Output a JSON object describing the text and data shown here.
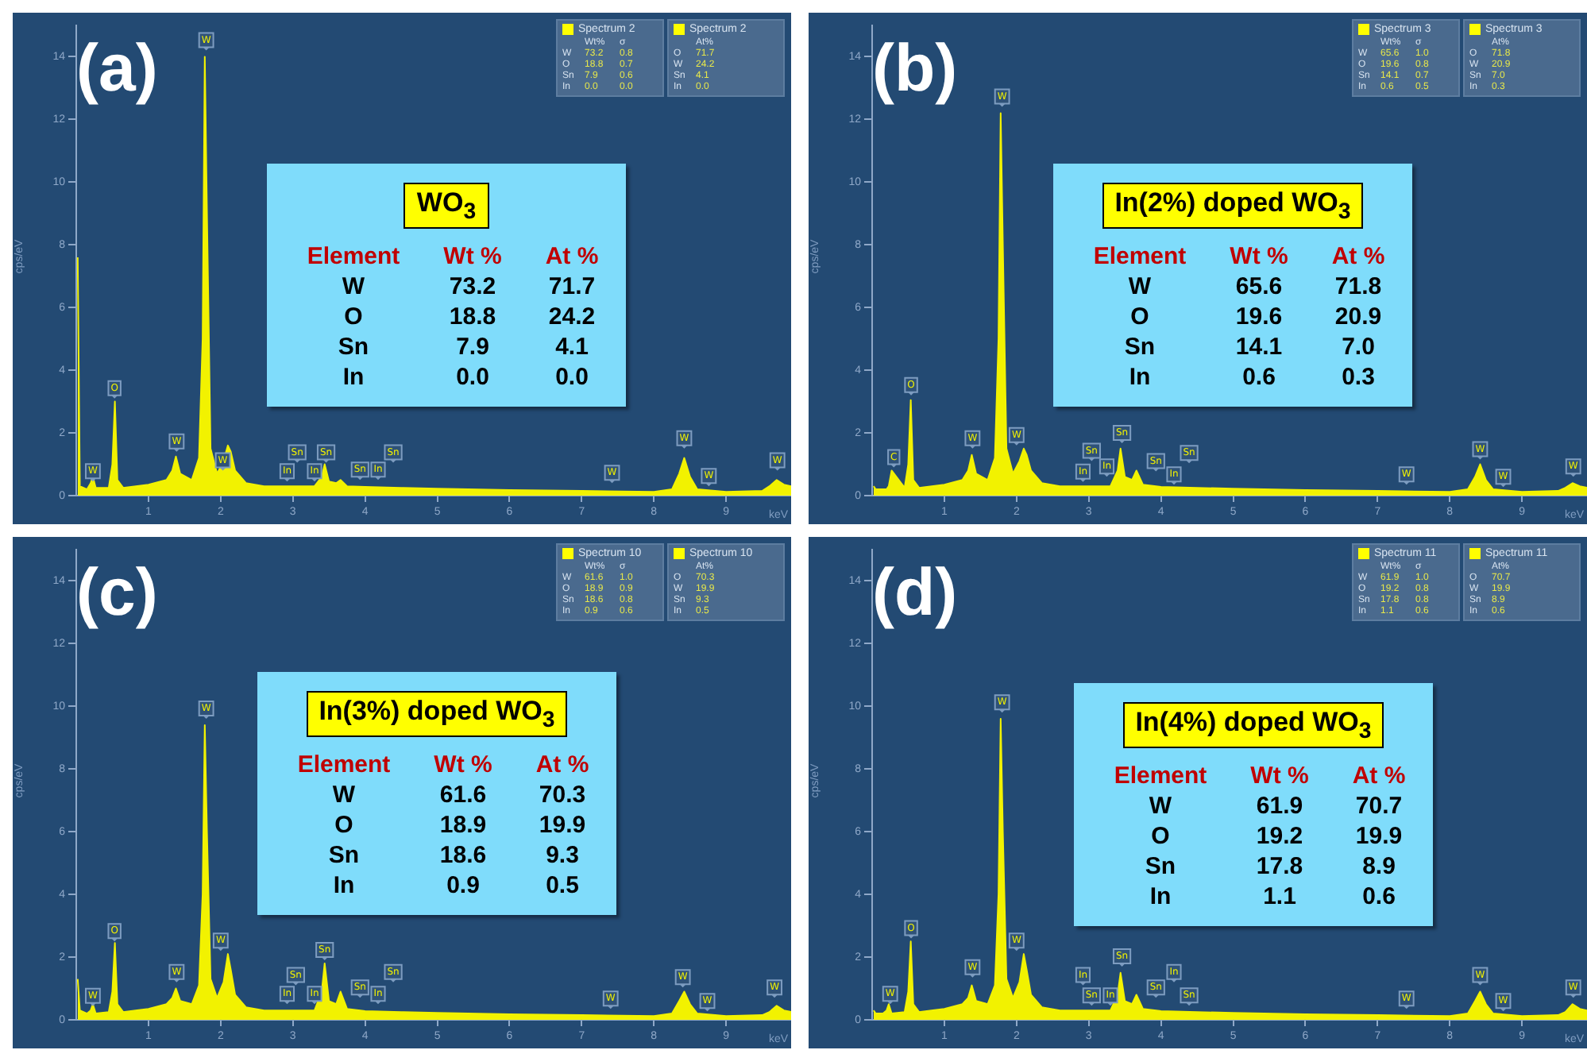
{
  "chart_data": [
    {
      "type": "area",
      "title": "(a)",
      "xlabel": "keV",
      "ylabel": "cps/eV",
      "x": [
        0.02,
        0.05,
        0.15,
        0.2,
        0.23,
        0.27,
        0.45,
        0.5,
        0.535,
        0.57,
        0.65,
        1.0,
        1.25,
        1.33,
        1.38,
        1.44,
        1.6,
        1.7,
        1.75,
        1.78,
        1.81,
        1.86,
        1.95,
        2.04,
        2.1,
        2.14,
        2.2,
        2.35,
        2.6,
        3.0,
        3.3,
        3.4,
        3.44,
        3.5,
        3.6,
        3.66,
        3.75,
        4.0,
        4.5,
        5.0,
        6.0,
        7.0,
        8.0,
        8.25,
        8.35,
        8.42,
        8.5,
        8.6,
        9.0,
        9.5,
        9.6,
        9.7,
        9.8,
        9.9
      ],
      "series": [
        {
          "color": "#f2f200",
          "values": [
            7.6,
            0.3,
            0.2,
            0.4,
            0.6,
            0.25,
            0.25,
            1.0,
            3.0,
            0.5,
            0.25,
            0.35,
            0.5,
            0.8,
            1.25,
            0.7,
            0.5,
            1.2,
            5.0,
            14.0,
            9.0,
            1.5,
            0.7,
            1.1,
            1.6,
            1.4,
            0.8,
            0.4,
            0.3,
            0.3,
            0.3,
            0.6,
            1.0,
            0.45,
            0.4,
            0.5,
            0.3,
            0.28,
            0.25,
            0.22,
            0.18,
            0.15,
            0.12,
            0.2,
            0.7,
            1.2,
            0.6,
            0.2,
            0.12,
            0.15,
            0.3,
            0.5,
            0.35,
            0.3
          ]
        }
      ],
      "xlim": [
        0,
        9.9
      ],
      "ylim": [
        0,
        15
      ],
      "xticks": [
        1,
        2,
        3,
        4,
        5,
        6,
        7,
        8,
        9
      ],
      "yticks": [
        0,
        2,
        4,
        6,
        8,
        10,
        12,
        14
      ],
      "grid": false,
      "legend": false,
      "marker": "none",
      "annotations": [
        "WO$_{3}$",
        "Element",
        "Wt %",
        "At %",
        "W",
        "73.2",
        "71.7",
        "O",
        "18.8",
        "24.2",
        "Sn",
        "7.9",
        "4.1",
        "In",
        "0.0",
        "0.0",
        "Spectrum 2",
        "Wt%",
        "σ",
        "W",
        "73.2",
        "0.8",
        "O",
        "18.8",
        "0.7",
        "Sn",
        "7.9",
        "0.6",
        "In",
        "0.0",
        "0.0",
        "Spectrum 2",
        "At%",
        "O",
        "71.7",
        "W",
        "24.2",
        "Sn",
        "4.1",
        "In",
        "0.0",
        {
          "text": "W",
          "x": 0.23,
          "y": 0.45
        },
        {
          "text": "O",
          "x": 0.53,
          "y": 3.1
        },
        {
          "text": "W",
          "x": 1.39,
          "y": 1.4
        },
        {
          "text": "W",
          "x": 1.8,
          "y": 14.2
        },
        {
          "text": "W",
          "x": 2.03,
          "y": 0.8
        },
        {
          "text": "In",
          "x": 2.92,
          "y": 0.45
        },
        {
          "text": "Sn",
          "x": 3.06,
          "y": 1.05
        },
        {
          "text": "In",
          "x": 3.3,
          "y": 0.45
        },
        {
          "text": "Sn",
          "x": 3.46,
          "y": 1.05
        },
        {
          "text": "Sn",
          "x": 3.93,
          "y": 0.5
        },
        {
          "text": "In",
          "x": 4.18,
          "y": 0.5
        },
        {
          "text": "Sn",
          "x": 4.39,
          "y": 1.05
        },
        {
          "text": "W",
          "x": 7.42,
          "y": 0.4
        },
        {
          "text": "W",
          "x": 8.42,
          "y": 1.5
        },
        {
          "text": "W",
          "x": 8.76,
          "y": 0.3
        },
        {
          "text": "W",
          "x": 9.71,
          "y": 0.8
        }
      ]
    },
    {
      "type": "area",
      "title": "(b)",
      "xlabel": "keV",
      "ylabel": "cps/eV",
      "x": [
        0.02,
        0.05,
        0.15,
        0.2,
        0.23,
        0.27,
        0.45,
        0.5,
        0.535,
        0.57,
        0.65,
        1.0,
        1.25,
        1.33,
        1.38,
        1.44,
        1.6,
        1.7,
        1.75,
        1.78,
        1.81,
        1.86,
        1.95,
        2.04,
        2.1,
        2.14,
        2.2,
        2.35,
        2.6,
        3.0,
        3.3,
        3.4,
        3.44,
        3.5,
        3.6,
        3.66,
        3.75,
        4.0,
        4.5,
        5.0,
        6.0,
        7.0,
        8.0,
        8.25,
        8.35,
        8.42,
        8.5,
        8.6,
        9.0,
        9.5,
        9.6,
        9.7,
        9.8,
        9.9
      ],
      "series": [
        {
          "color": "#f2f200",
          "values": [
            0.3,
            0.2,
            0.2,
            0.2,
            0.3,
            0.8,
            0.25,
            1.0,
            3.05,
            0.5,
            0.25,
            0.35,
            0.5,
            0.8,
            1.3,
            0.7,
            0.5,
            1.2,
            5.0,
            12.2,
            8.0,
            1.5,
            0.7,
            1.1,
            1.5,
            1.3,
            0.8,
            0.4,
            0.3,
            0.3,
            0.3,
            0.8,
            1.5,
            0.6,
            0.5,
            0.8,
            0.35,
            0.28,
            0.25,
            0.22,
            0.18,
            0.15,
            0.12,
            0.2,
            0.6,
            1.0,
            0.5,
            0.2,
            0.12,
            0.15,
            0.25,
            0.4,
            0.3,
            0.25
          ]
        }
      ],
      "xlim": [
        0,
        9.9
      ],
      "ylim": [
        0,
        15
      ],
      "xticks": [
        1,
        2,
        3,
        4,
        5,
        6,
        7,
        8,
        9
      ],
      "yticks": [
        0,
        2,
        4,
        6,
        8,
        10,
        12,
        14
      ],
      "grid": false,
      "legend": false,
      "marker": "none",
      "annotations": [
        "In(2%) doped WO$_{3}$",
        "Element",
        "Wt %",
        "At %",
        "W",
        "65.6",
        "71.8",
        "O",
        "19.6",
        "20.9",
        "Sn",
        "14.1",
        "7.0",
        "In",
        "0.6",
        "0.3",
        "Spectrum 3",
        "Wt%",
        "σ",
        "W",
        "65.6",
        "1.0",
        "O",
        "19.6",
        "0.8",
        "Sn",
        "14.1",
        "0.7",
        "In",
        "0.6",
        "0.5",
        "Spectrum 3",
        "At%",
        "O",
        "71.8",
        "W",
        "20.9",
        "Sn",
        "7.0",
        "In",
        "0.3",
        {
          "text": "C",
          "x": 0.3,
          "y": 0.9
        },
        {
          "text": "O",
          "x": 0.54,
          "y": 3.2
        },
        {
          "text": "W",
          "x": 1.39,
          "y": 1.5
        },
        {
          "text": "W",
          "x": 1.8,
          "y": 12.4
        },
        {
          "text": "W",
          "x": 2.0,
          "y": 1.6
        },
        {
          "text": "In",
          "x": 2.92,
          "y": 0.44
        },
        {
          "text": "Sn",
          "x": 3.04,
          "y": 1.1
        },
        {
          "text": "In",
          "x": 3.25,
          "y": 0.6
        },
        {
          "text": "Sn",
          "x": 3.46,
          "y": 1.67
        },
        {
          "text": "Sn",
          "x": 3.93,
          "y": 0.77
        },
        {
          "text": "In",
          "x": 4.18,
          "y": 0.35
        },
        {
          "text": "Sn",
          "x": 4.39,
          "y": 1.03
        },
        {
          "text": "W",
          "x": 7.4,
          "y": 0.35
        },
        {
          "text": "W",
          "x": 8.42,
          "y": 1.15
        },
        {
          "text": "W",
          "x": 8.74,
          "y": 0.27
        },
        {
          "text": "W",
          "x": 9.71,
          "y": 0.6
        }
      ]
    },
    {
      "type": "area",
      "title": "(c)",
      "xlabel": "keV",
      "ylabel": "cps/eV",
      "x": [
        0.02,
        0.05,
        0.15,
        0.2,
        0.23,
        0.27,
        0.45,
        0.5,
        0.535,
        0.57,
        0.65,
        1.0,
        1.25,
        1.33,
        1.38,
        1.44,
        1.6,
        1.7,
        1.75,
        1.78,
        1.81,
        1.86,
        1.95,
        2.04,
        2.1,
        2.14,
        2.2,
        2.35,
        2.6,
        3.0,
        3.3,
        3.4,
        3.44,
        3.5,
        3.6,
        3.66,
        3.75,
        4.0,
        4.5,
        5.0,
        6.0,
        7.0,
        8.0,
        8.25,
        8.35,
        8.42,
        8.5,
        8.6,
        9.0,
        9.5,
        9.6,
        9.7,
        9.8,
        9.9
      ],
      "series": [
        {
          "color": "#f2f200",
          "values": [
            1.3,
            0.3,
            0.2,
            0.3,
            0.5,
            0.2,
            0.25,
            0.9,
            2.45,
            0.5,
            0.25,
            0.35,
            0.5,
            0.7,
            1.0,
            0.6,
            0.5,
            1.1,
            4.0,
            9.4,
            6.0,
            1.3,
            0.7,
            1.2,
            2.1,
            1.6,
            0.8,
            0.4,
            0.3,
            0.3,
            0.3,
            0.9,
            1.8,
            0.6,
            0.5,
            0.9,
            0.35,
            0.28,
            0.25,
            0.22,
            0.18,
            0.15,
            0.12,
            0.2,
            0.6,
            0.9,
            0.5,
            0.2,
            0.12,
            0.15,
            0.25,
            0.45,
            0.3,
            0.25
          ]
        }
      ],
      "xlim": [
        0,
        9.9
      ],
      "ylim": [
        0,
        15
      ],
      "xticks": [
        1,
        2,
        3,
        4,
        5,
        6,
        7,
        8,
        9
      ],
      "yticks": [
        0,
        2,
        4,
        6,
        8,
        10,
        12,
        14
      ],
      "grid": false,
      "legend": false,
      "marker": "none",
      "annotations": [
        "In(3%) doped WO$_{3}$",
        "Element",
        "Wt %",
        "At %",
        "W",
        "61.6",
        "70.3",
        "O",
        "18.9",
        "19.9",
        "Sn",
        "18.6",
        "9.3",
        "In",
        "0.9",
        "0.5",
        "Spectrum 10",
        "Wt%",
        "σ",
        "W",
        "61.6",
        "1.0",
        "O",
        "18.9",
        "0.9",
        "Sn",
        "18.6",
        "0.8",
        "In",
        "0.9",
        "0.6",
        "Spectrum 10",
        "At%",
        "O",
        "70.3",
        "W",
        "19.9",
        "Sn",
        "9.3",
        "In",
        "0.5",
        {
          "text": "W",
          "x": 0.23,
          "y": 0.44
        },
        {
          "text": "O",
          "x": 0.53,
          "y": 2.5
        },
        {
          "text": "W",
          "x": 1.39,
          "y": 1.2
        },
        {
          "text": "W",
          "x": 1.8,
          "y": 9.6
        },
        {
          "text": "W",
          "x": 2.0,
          "y": 2.2
        },
        {
          "text": "In",
          "x": 2.92,
          "y": 0.5
        },
        {
          "text": "Sn",
          "x": 3.04,
          "y": 1.1
        },
        {
          "text": "In",
          "x": 3.3,
          "y": 0.5
        },
        {
          "text": "Sn",
          "x": 3.44,
          "y": 1.9
        },
        {
          "text": "Sn",
          "x": 3.93,
          "y": 0.7
        },
        {
          "text": "In",
          "x": 4.18,
          "y": 0.5
        },
        {
          "text": "Sn",
          "x": 4.39,
          "y": 1.2
        },
        {
          "text": "W",
          "x": 7.4,
          "y": 0.35
        },
        {
          "text": "W",
          "x": 8.4,
          "y": 1.03
        },
        {
          "text": "W",
          "x": 8.74,
          "y": 0.27
        },
        {
          "text": "W",
          "x": 9.67,
          "y": 0.7
        }
      ]
    },
    {
      "type": "area",
      "title": "(d)",
      "xlabel": "keV",
      "ylabel": "cps/eV",
      "x": [
        0.02,
        0.05,
        0.15,
        0.2,
        0.23,
        0.27,
        0.45,
        0.5,
        0.535,
        0.57,
        0.65,
        1.0,
        1.25,
        1.33,
        1.38,
        1.44,
        1.6,
        1.7,
        1.75,
        1.78,
        1.81,
        1.86,
        1.95,
        2.04,
        2.1,
        2.14,
        2.2,
        2.35,
        2.6,
        3.0,
        3.3,
        3.4,
        3.44,
        3.5,
        3.6,
        3.66,
        3.75,
        4.0,
        4.5,
        5.0,
        6.0,
        7.0,
        8.0,
        8.25,
        8.35,
        8.42,
        8.5,
        8.6,
        9.0,
        9.5,
        9.6,
        9.7,
        9.8,
        9.9
      ],
      "series": [
        {
          "color": "#f2f200",
          "values": [
            0.3,
            0.2,
            0.2,
            0.3,
            0.5,
            0.2,
            0.25,
            0.9,
            2.5,
            0.5,
            0.25,
            0.35,
            0.5,
            0.7,
            1.1,
            0.6,
            0.5,
            1.1,
            4.0,
            9.6,
            6.0,
            1.3,
            0.7,
            1.2,
            2.1,
            1.6,
            0.8,
            0.4,
            0.3,
            0.3,
            0.3,
            0.8,
            1.5,
            0.6,
            0.5,
            0.8,
            0.35,
            0.28,
            0.25,
            0.22,
            0.18,
            0.15,
            0.12,
            0.2,
            0.6,
            0.9,
            0.5,
            0.2,
            0.12,
            0.15,
            0.25,
            0.5,
            0.35,
            0.3
          ]
        }
      ],
      "xlim": [
        0,
        9.9
      ],
      "ylim": [
        0,
        15
      ],
      "xticks": [
        1,
        2,
        3,
        4,
        5,
        6,
        7,
        8,
        9
      ],
      "yticks": [
        0,
        2,
        4,
        6,
        8,
        10,
        12,
        14
      ],
      "grid": false,
      "legend": false,
      "marker": "none",
      "annotations": [
        "In(4%) doped WO$_{3}$",
        "Element",
        "Wt %",
        "At %",
        "W",
        "61.9",
        "70.7",
        "O",
        "19.2",
        "19.9",
        "Sn",
        "17.8",
        "8.9",
        "In",
        "1.1",
        "0.6",
        "Spectrum 11",
        "Wt%",
        "σ",
        "W",
        "61.9",
        "1.0",
        "O",
        "19.2",
        "0.8",
        "Sn",
        "17.8",
        "0.8",
        "In",
        "1.1",
        "0.6",
        "Spectrum 11",
        "At%",
        "O",
        "70.7",
        "W",
        "19.9",
        "Sn",
        "8.9",
        "In",
        "0.6",
        {
          "text": "W",
          "x": 0.25,
          "y": 0.5
        },
        {
          "text": "O",
          "x": 0.54,
          "y": 2.6
        },
        {
          "text": "W",
          "x": 1.39,
          "y": 1.35
        },
        {
          "text": "W",
          "x": 1.8,
          "y": 9.8
        },
        {
          "text": "W",
          "x": 2.0,
          "y": 2.2
        },
        {
          "text": "In",
          "x": 2.92,
          "y": 1.1
        },
        {
          "text": "Sn",
          "x": 3.04,
          "y": 0.45
        },
        {
          "text": "In",
          "x": 3.3,
          "y": 0.45
        },
        {
          "text": "Sn",
          "x": 3.46,
          "y": 1.7
        },
        {
          "text": "Sn",
          "x": 3.93,
          "y": 0.7
        },
        {
          "text": "In",
          "x": 4.18,
          "y": 1.2
        },
        {
          "text": "Sn",
          "x": 4.39,
          "y": 0.45
        },
        {
          "text": "W",
          "x": 7.4,
          "y": 0.35
        },
        {
          "text": "W",
          "x": 8.42,
          "y": 1.1
        },
        {
          "text": "W",
          "x": 8.74,
          "y": 0.27
        },
        {
          "text": "W",
          "x": 9.71,
          "y": 0.7
        }
      ]
    }
  ]
}
